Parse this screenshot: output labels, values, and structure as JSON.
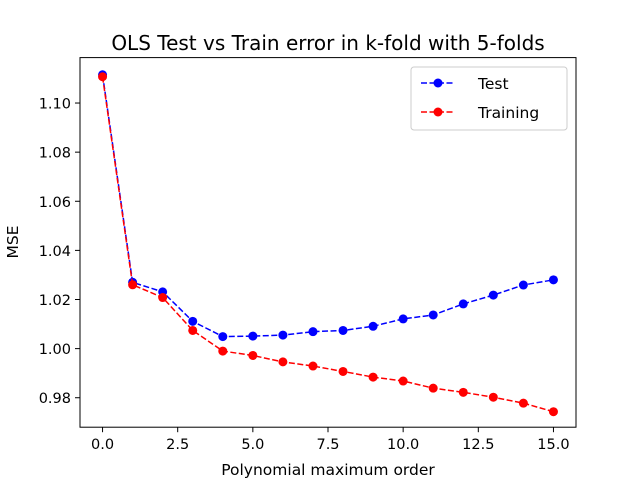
{
  "chart_data": {
    "type": "line",
    "title": "OLS Test vs Train error in k-fold with 5-folds",
    "xlabel": "Polynomial maximum order",
    "ylabel": "MSE",
    "xlim": [
      -0.75,
      15.75
    ],
    "ylim": [
      0.968,
      1.1185
    ],
    "xticks": [
      0.0,
      2.5,
      5.0,
      7.5,
      10.0,
      12.5,
      15.0
    ],
    "xtick_labels": [
      "0.0",
      "2.5",
      "5.0",
      "7.5",
      "10.0",
      "12.5",
      "15.0"
    ],
    "yticks": [
      0.98,
      1.0,
      1.02,
      1.04,
      1.06,
      1.08,
      1.1
    ],
    "ytick_labels": [
      "0.98",
      "1.00",
      "1.02",
      "1.04",
      "1.06",
      "1.08",
      "1.10"
    ],
    "grid": false,
    "legend_position": "top-right",
    "x": [
      0,
      1,
      2,
      3,
      4,
      5,
      6,
      7,
      8,
      9,
      10,
      11,
      12,
      13,
      14,
      15
    ],
    "series": [
      {
        "name": "Test",
        "color": "#0000ff",
        "linestyle": "dashed",
        "marker": "circle",
        "values": [
          1.1115,
          1.027,
          1.0231,
          1.0111,
          1.0049,
          1.0051,
          1.0055,
          1.0069,
          1.0074,
          1.0091,
          1.0121,
          1.0137,
          1.0182,
          1.0218,
          1.0259,
          1.028
        ]
      },
      {
        "name": "Training",
        "color": "#ff0000",
        "linestyle": "dashed",
        "marker": "circle",
        "values": [
          1.1107,
          1.026,
          1.0208,
          1.0074,
          0.999,
          0.9972,
          0.9946,
          0.9929,
          0.9907,
          0.9884,
          0.9868,
          0.9839,
          0.9822,
          0.9802,
          0.9778,
          0.9743
        ]
      }
    ]
  }
}
